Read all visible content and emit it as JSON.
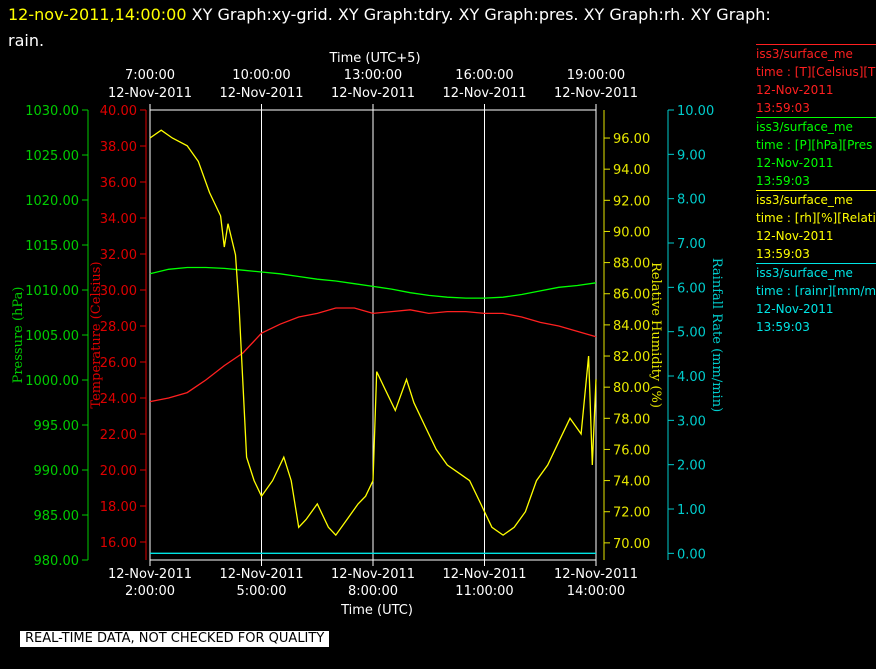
{
  "header": {
    "timestamp": "12-nov-2011,14:00:00",
    "graph_titles": [
      "XY Graph:xy-grid.",
      "XY Graph:tdry.",
      "XY Graph:pres.",
      "XY Graph:rh.",
      "XY Graph:",
      "rain."
    ]
  },
  "legend": [
    {
      "line1": "iss3/surface_me",
      "line2": "time : [T][Celsius][T",
      "line3": "12-Nov-2011",
      "line4": "13:59:03",
      "color": "#ff2020"
    },
    {
      "line1": "iss3/surface_me",
      "line2": "time : [P][hPa][Pres",
      "line3": "12-Nov-2011",
      "line4": "13:59:03",
      "color": "#00ff00"
    },
    {
      "line1": "iss3/surface_me",
      "line2": "time : [rh][%][Relati",
      "line3": "12-Nov-2011",
      "line4": "13:59:03",
      "color": "#ffff00"
    },
    {
      "line1": "iss3/surface_me",
      "line2": "time : [rainr][mm/mi",
      "line3": "12-Nov-2011",
      "line4": "13:59:03",
      "color": "#00e5e5"
    }
  ],
  "footer": "REAL-TIME DATA, NOT CHECKED FOR QUALITY",
  "chart_data": {
    "type": "line",
    "top_axis": {
      "title": "Time (UTC+5)",
      "ticks": [
        {
          "time": "7:00:00",
          "date": "12-Nov-2011"
        },
        {
          "time": "10:00:00",
          "date": "12-Nov-2011"
        },
        {
          "time": "13:00:00",
          "date": "12-Nov-2011"
        },
        {
          "time": "16:00:00",
          "date": "12-Nov-2011"
        },
        {
          "time": "19:00:00",
          "date": "12-Nov-2011"
        }
      ]
    },
    "bottom_axis": {
      "title": "Time (UTC)",
      "xlim": [
        "02:00",
        "14:00"
      ],
      "ticks": [
        {
          "x": 2,
          "date": "12-Nov-2011",
          "time": "2:00:00"
        },
        {
          "x": 5,
          "date": "12-Nov-2011",
          "time": "5:00:00"
        },
        {
          "x": 8,
          "date": "12-Nov-2011",
          "time": "8:00:00"
        },
        {
          "x": 11,
          "date": "12-Nov-2011",
          "time": "11:00:00"
        },
        {
          "x": 14,
          "date": "12-Nov-2011",
          "time": "14:00:00"
        }
      ]
    },
    "grid": true,
    "axes": {
      "pressure": {
        "label": "Pressure (hPa)",
        "ylim": [
          980,
          1030
        ],
        "color": "#00cc00",
        "ticks": [
          "980.00",
          "985.00",
          "990.00",
          "995.00",
          "1000.00",
          "1005.00",
          "1010.00",
          "1015.00",
          "1020.00",
          "1025.00",
          "1030.00"
        ]
      },
      "temperature": {
        "label": "Temperature (Celsius)",
        "ylim": [
          15.0,
          40.0
        ],
        "color": "#dd0000",
        "ticks": [
          "16.00",
          "18.00",
          "20.00",
          "22.00",
          "24.00",
          "26.00",
          "28.00",
          "30.00",
          "32.00",
          "34.00",
          "36.00",
          "38.00",
          "40.00"
        ]
      },
      "rh": {
        "label": "Relative Humidity (%)",
        "ylim": [
          68.9,
          97.8
        ],
        "color": "#e6e600",
        "ticks": [
          "70.00",
          "72.00",
          "74.00",
          "76.00",
          "78.00",
          "80.00",
          "82.00",
          "84.00",
          "86.00",
          "88.00",
          "90.00",
          "92.00",
          "94.00",
          "96.00"
        ]
      },
      "rain": {
        "label": "Rainfall Rate (mm/min)",
        "ylim": [
          -0.15,
          10.0
        ],
        "color": "#00cccc",
        "ticks": [
          "0.00",
          "1.00",
          "2.00",
          "3.00",
          "4.00",
          "5.00",
          "6.00",
          "7.00",
          "8.00",
          "9.00",
          "10.00"
        ]
      }
    },
    "series": [
      {
        "axis": "temperature",
        "color": "#ff2020",
        "x": [
          2.0,
          2.5,
          3.0,
          3.5,
          4.0,
          4.5,
          5.0,
          5.5,
          6.0,
          6.5,
          7.0,
          7.5,
          8.0,
          8.5,
          9.0,
          9.5,
          10.0,
          10.5,
          11.0,
          11.5,
          12.0,
          12.5,
          13.0,
          13.5,
          14.0
        ],
        "y": [
          23.8,
          24.0,
          24.3,
          25.0,
          25.8,
          26.5,
          27.6,
          28.1,
          28.5,
          28.7,
          29.0,
          29.0,
          28.7,
          28.8,
          28.9,
          28.7,
          28.8,
          28.8,
          28.7,
          28.7,
          28.5,
          28.2,
          28.0,
          27.7,
          27.4
        ]
      },
      {
        "axis": "pressure",
        "color": "#00ff00",
        "x": [
          2.0,
          2.5,
          3.0,
          3.5,
          4.0,
          4.5,
          5.0,
          5.5,
          6.0,
          6.5,
          7.0,
          7.5,
          8.0,
          8.5,
          9.0,
          9.5,
          10.0,
          10.5,
          11.0,
          11.5,
          12.0,
          12.5,
          13.0,
          13.5,
          14.0
        ],
        "y": [
          1011.8,
          1012.3,
          1012.5,
          1012.5,
          1012.4,
          1012.2,
          1012.0,
          1011.8,
          1011.5,
          1011.2,
          1011.0,
          1010.7,
          1010.4,
          1010.1,
          1009.7,
          1009.4,
          1009.2,
          1009.1,
          1009.1,
          1009.2,
          1009.5,
          1009.9,
          1010.3,
          1010.5,
          1010.8
        ]
      },
      {
        "axis": "rh",
        "color": "#ffff00",
        "x": [
          2.0,
          2.3,
          2.6,
          3.0,
          3.3,
          3.6,
          3.9,
          4.0,
          4.1,
          4.3,
          4.4,
          4.6,
          4.8,
          5.0,
          5.3,
          5.6,
          5.8,
          6.0,
          6.2,
          6.5,
          6.8,
          7.0,
          7.3,
          7.6,
          7.8,
          8.0,
          8.1,
          8.3,
          8.6,
          8.9,
          9.1,
          9.4,
          9.7,
          10.0,
          10.3,
          10.6,
          10.9,
          11.2,
          11.5,
          11.8,
          12.1,
          12.4,
          12.7,
          13.0,
          13.3,
          13.6,
          13.8,
          13.9,
          14.0
        ],
        "y": [
          96.0,
          96.5,
          96.0,
          95.5,
          94.5,
          92.5,
          91.0,
          89.0,
          90.5,
          88.5,
          85.0,
          75.5,
          74.0,
          73.0,
          74.0,
          75.5,
          74.0,
          71.0,
          71.5,
          72.5,
          71.0,
          70.5,
          71.5,
          72.5,
          73.0,
          74.0,
          81.0,
          80.0,
          78.5,
          80.5,
          79.0,
          77.5,
          76.0,
          75.0,
          74.5,
          74.0,
          72.5,
          71.0,
          70.5,
          71.0,
          72.0,
          74.0,
          75.0,
          76.5,
          78.0,
          77.0,
          82.0,
          75.0,
          80.5
        ]
      },
      {
        "axis": "rain",
        "color": "#00e5e5",
        "x": [
          2.0,
          14.0
        ],
        "y": [
          0.0,
          0.0
        ]
      }
    ]
  }
}
